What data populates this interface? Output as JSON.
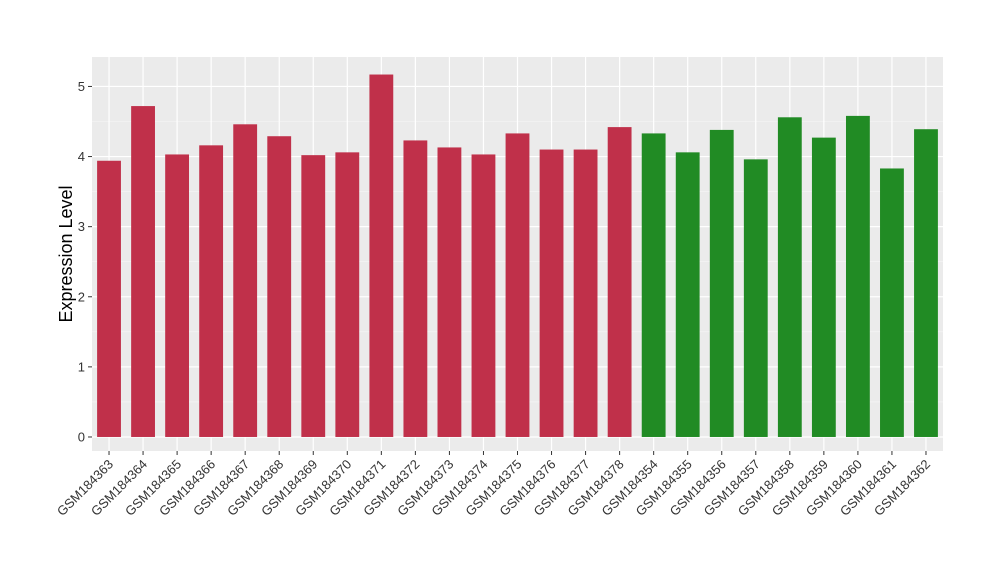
{
  "chart_data": {
    "type": "bar",
    "ylabel": "Expression Level",
    "xlabel": "",
    "ylim": [
      -0.2,
      5.42
    ],
    "yticks": [
      0,
      1,
      2,
      3,
      4,
      5
    ],
    "grid": true,
    "background": "#ebebeb",
    "categories": [
      "GSM184363",
      "GSM184364",
      "GSM184365",
      "GSM184366",
      "GSM184367",
      "GSM184368",
      "GSM184369",
      "GSM184370",
      "GSM184371",
      "GSM184372",
      "GSM184373",
      "GSM184374",
      "GSM184375",
      "GSM184376",
      "GSM184377",
      "GSM184378",
      "GSM184354",
      "GSM184355",
      "GSM184356",
      "GSM184357",
      "GSM184358",
      "GSM184359",
      "GSM184360",
      "GSM184361",
      "GSM184362"
    ],
    "values": [
      3.94,
      4.72,
      4.03,
      4.16,
      4.46,
      4.29,
      4.02,
      4.06,
      5.17,
      4.23,
      4.13,
      4.03,
      4.33,
      4.1,
      4.1,
      4.42,
      4.33,
      4.06,
      4.38,
      3.96,
      4.56,
      4.27,
      4.58,
      3.83,
      4.39
    ],
    "groups": [
      "red",
      "red",
      "red",
      "red",
      "red",
      "red",
      "red",
      "red",
      "red",
      "red",
      "red",
      "red",
      "red",
      "red",
      "red",
      "red",
      "green",
      "green",
      "green",
      "green",
      "green",
      "green",
      "green",
      "green",
      "green"
    ],
    "colors": {
      "red": "#c0304a",
      "green": "#218b24"
    }
  }
}
